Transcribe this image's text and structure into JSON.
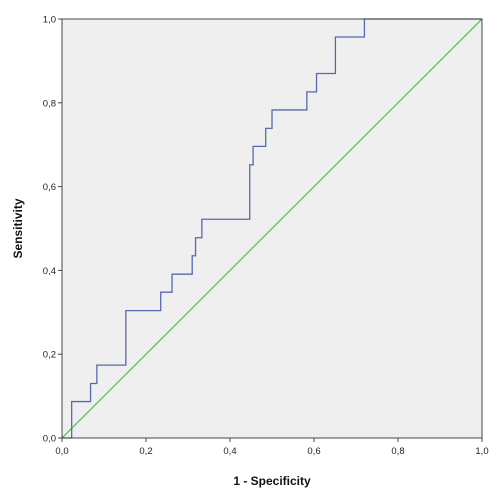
{
  "chart_data": {
    "type": "line",
    "xlabel": "1 - Specificity",
    "ylabel": "Sensitivity",
    "xlim": [
      0,
      1
    ],
    "ylim": [
      0,
      1
    ],
    "grid": false,
    "plot_background": "#efefef",
    "x_ticks": [
      0.0,
      0.2,
      0.4,
      0.6,
      0.8,
      1.0
    ],
    "y_ticks": [
      0.0,
      0.2,
      0.4,
      0.6,
      0.8,
      1.0
    ],
    "x_tick_labels": [
      "0,0",
      "0,2",
      "0,4",
      "0,6",
      "0,8",
      "1,0"
    ],
    "y_tick_labels": [
      "0,0",
      "0,2",
      "0,4",
      "0,6",
      "0,8",
      "1,0"
    ],
    "series": [
      {
        "color": "#5a69ad",
        "x": [
          0.0,
          0.023,
          0.023,
          0.068,
          0.068,
          0.083,
          0.083,
          0.152,
          0.152,
          0.235,
          0.235,
          0.262,
          0.262,
          0.31,
          0.31,
          0.318,
          0.318,
          0.333,
          0.333,
          0.447,
          0.447,
          0.455,
          0.455,
          0.485,
          0.485,
          0.5,
          0.5,
          0.583,
          0.583,
          0.606,
          0.606,
          0.651,
          0.651,
          0.72,
          0.72,
          1.0
        ],
        "y": [
          0.0,
          0.0,
          0.087,
          0.087,
          0.13,
          0.13,
          0.174,
          0.174,
          0.304,
          0.304,
          0.348,
          0.348,
          0.391,
          0.391,
          0.435,
          0.435,
          0.478,
          0.478,
          0.522,
          0.522,
          0.652,
          0.652,
          0.696,
          0.696,
          0.739,
          0.739,
          0.783,
          0.783,
          0.826,
          0.826,
          0.87,
          0.87,
          0.957,
          0.957,
          1.0,
          1.0
        ]
      },
      {
        "color": "#5dc25d",
        "x": [
          0.0,
          1.0
        ],
        "y": [
          0.0,
          1.0
        ]
      }
    ]
  }
}
